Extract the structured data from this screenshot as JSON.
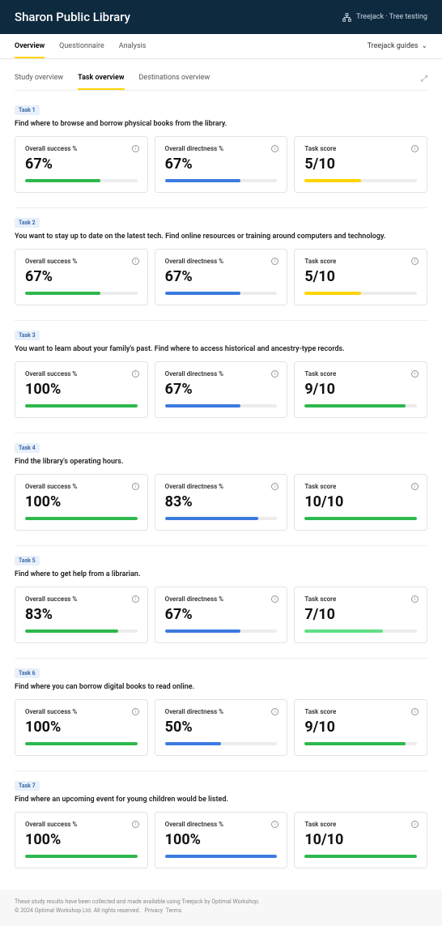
{
  "header": {
    "title": "Sharon Public Library",
    "breadcrumb": "Treejack · Tree testing"
  },
  "nav": {
    "tabs": [
      "Overview",
      "Questionnaire",
      "Analysis"
    ],
    "active": 0,
    "right": "Treejack guides"
  },
  "sectionTabs": {
    "tabs": [
      "Study overview",
      "Task overview",
      "Destinations overview"
    ],
    "active": 1
  },
  "metricLabels": {
    "success": "Overall success %",
    "directness": "Overall directness %",
    "score": "Task score"
  },
  "colors": {
    "success": "#2db84d",
    "directness": "#3b7be0",
    "scoreLow": "#ffd500",
    "scoreHigh": "#2db84d",
    "scoreMid": "#5fe085",
    "track": "#ececec"
  },
  "tasks": [
    {
      "badge": "Task 1",
      "desc": "Find where to browse and borrow physical books from the library.",
      "success": {
        "text": "67%",
        "pct": 67
      },
      "directness": {
        "text": "67%",
        "pct": 67
      },
      "score": {
        "text": "5/10",
        "pct": 50,
        "color": "#ffd500"
      }
    },
    {
      "badge": "Task 2",
      "desc": "You want to stay up to date on the latest tech. Find online resources or training around computers and technology.",
      "success": {
        "text": "67%",
        "pct": 67
      },
      "directness": {
        "text": "67%",
        "pct": 67
      },
      "score": {
        "text": "5/10",
        "pct": 50,
        "color": "#ffd500"
      }
    },
    {
      "badge": "Task 3",
      "desc": "You want to learn about your family's past. Find where to access historical and ancestry-type records.",
      "success": {
        "text": "100%",
        "pct": 100
      },
      "directness": {
        "text": "67%",
        "pct": 67
      },
      "score": {
        "text": "9/10",
        "pct": 90,
        "color": "#2db84d"
      }
    },
    {
      "badge": "Task 4",
      "desc": "Find the library's operating hours.",
      "success": {
        "text": "100%",
        "pct": 100
      },
      "directness": {
        "text": "83%",
        "pct": 83
      },
      "score": {
        "text": "10/10",
        "pct": 100,
        "color": "#2db84d"
      }
    },
    {
      "badge": "Task 5",
      "desc": "Find where to get help from a librarian.",
      "success": {
        "text": "83%",
        "pct": 83
      },
      "directness": {
        "text": "67%",
        "pct": 67
      },
      "score": {
        "text": "7/10",
        "pct": 70,
        "color": "#5fe085"
      }
    },
    {
      "badge": "Task 6",
      "desc": "Find where you can borrow digital books to read online.",
      "success": {
        "text": "100%",
        "pct": 100
      },
      "directness": {
        "text": "50%",
        "pct": 50
      },
      "score": {
        "text": "9/10",
        "pct": 90,
        "color": "#2db84d"
      }
    },
    {
      "badge": "Task 7",
      "desc": "Find where an upcoming event for young children would be listed.",
      "success": {
        "text": "100%",
        "pct": 100
      },
      "directness": {
        "text": "100%",
        "pct": 100
      },
      "score": {
        "text": "10/10",
        "pct": 100,
        "color": "#2db84d"
      }
    }
  ],
  "footer": {
    "line1": "These study results have been collected and made available using Treejack by Optimal Workshop.",
    "line2": "© 2024 Optimal Workshop Ltd. All rights reserved.",
    "privacy": "Privacy",
    "terms": "Terms"
  }
}
